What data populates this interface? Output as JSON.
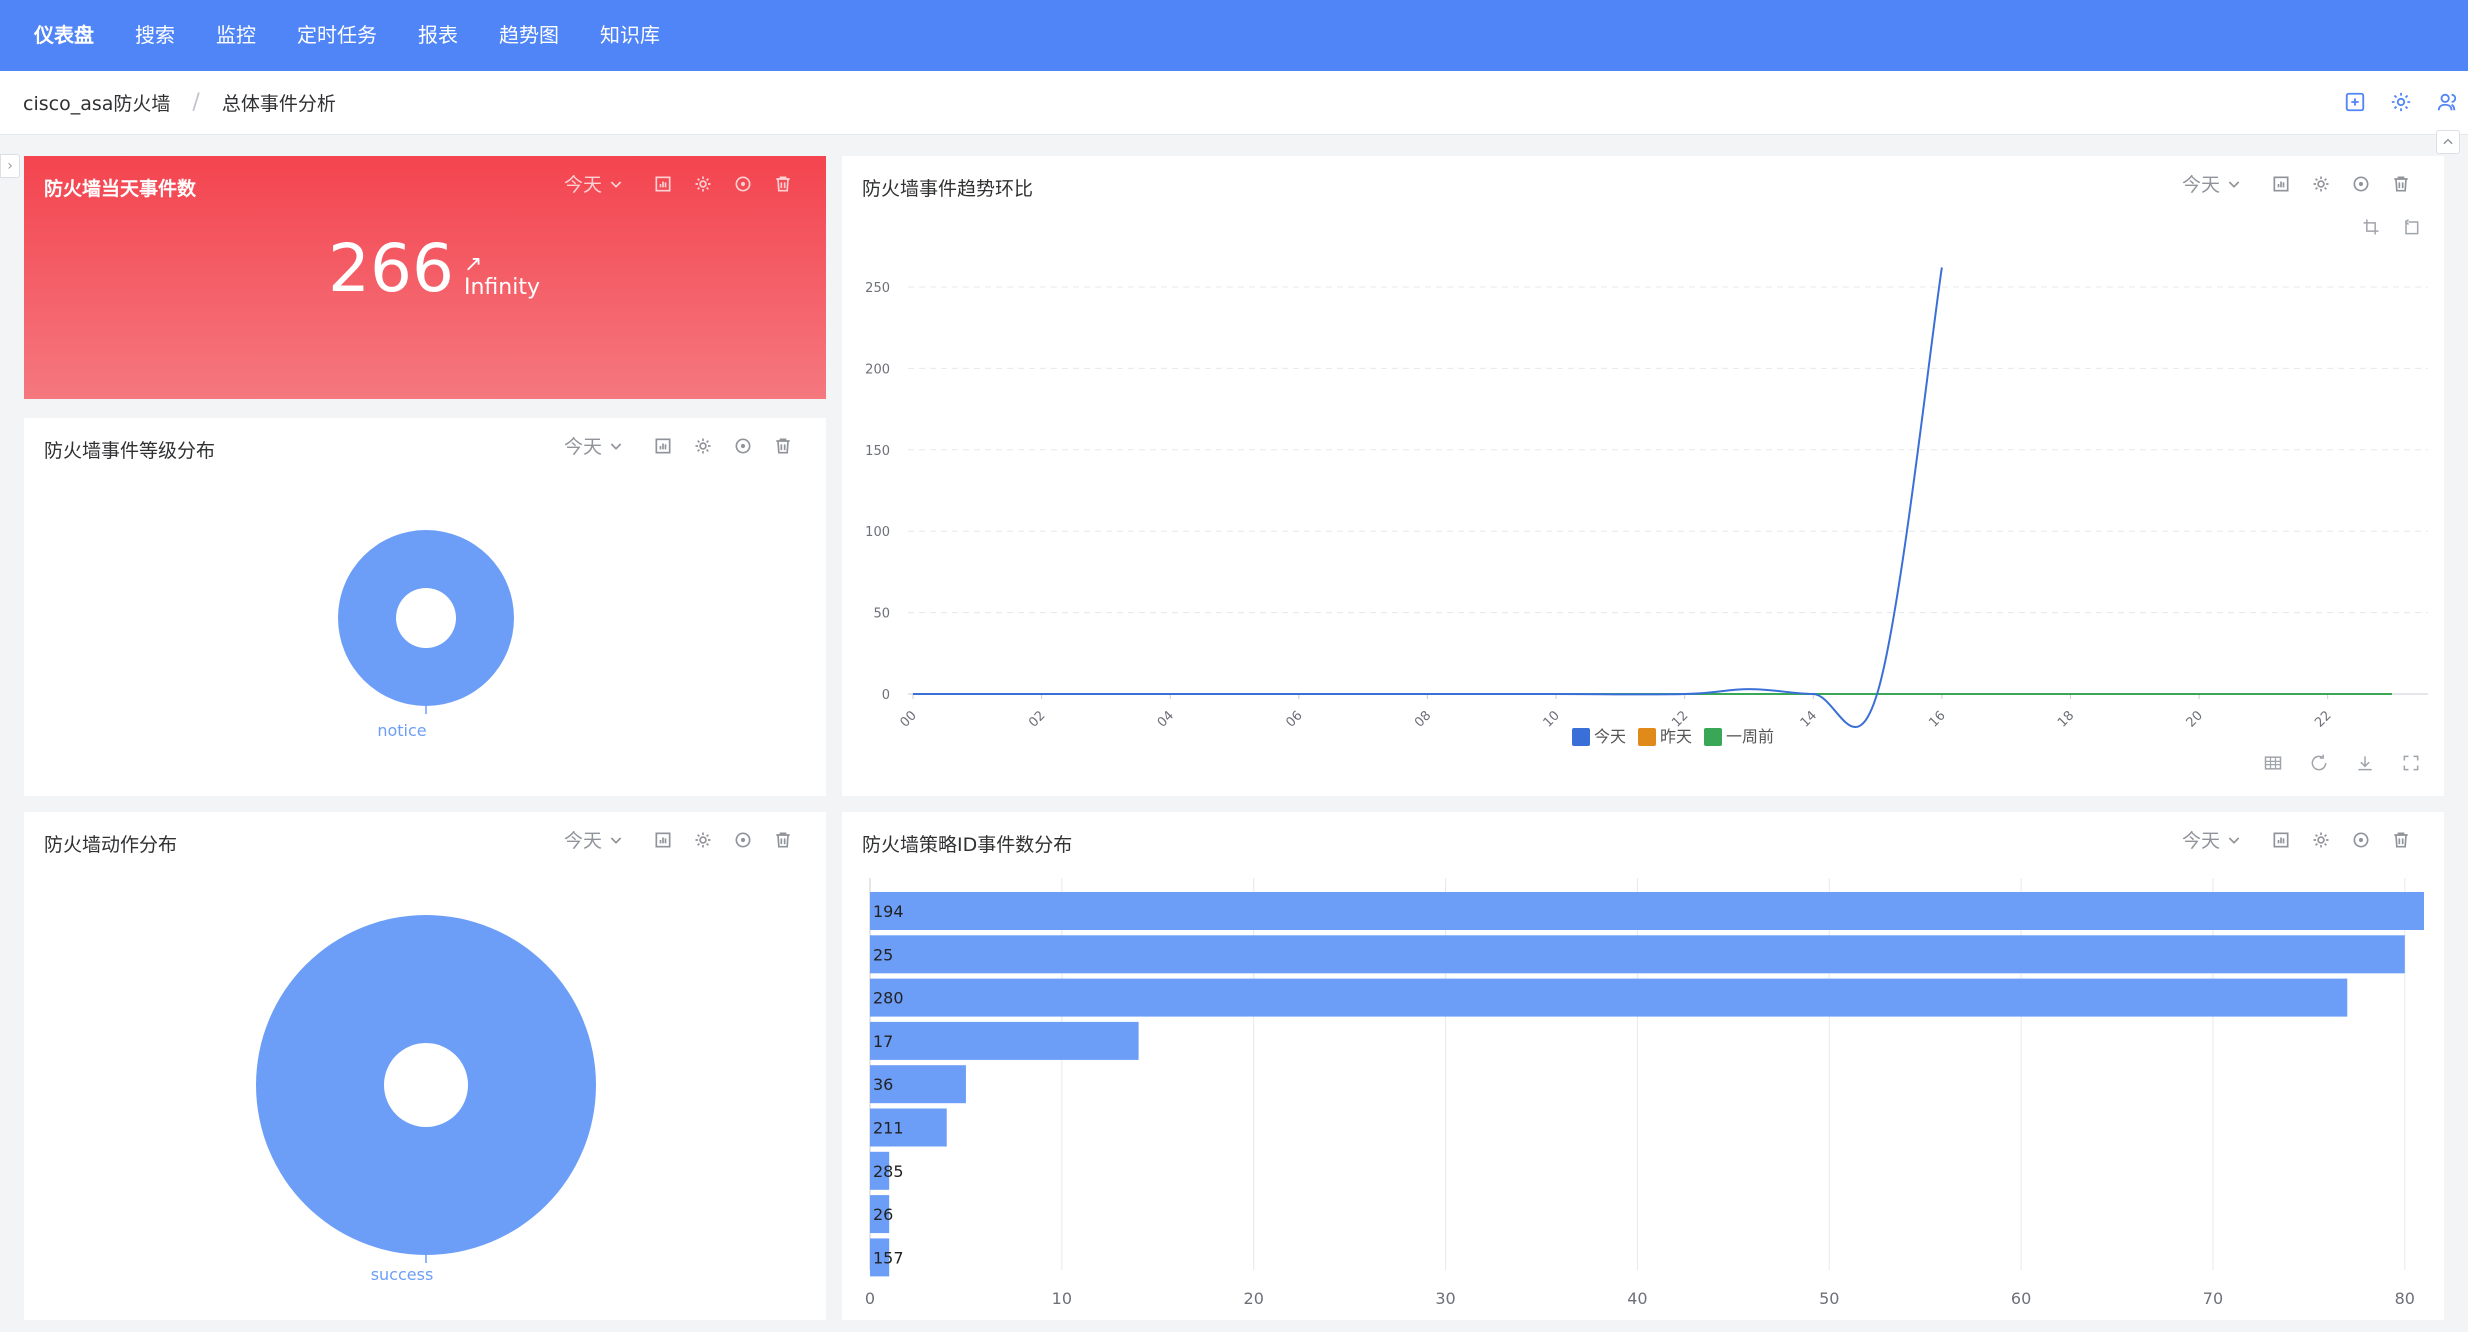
{
  "nav": {
    "items": [
      "仪表盘",
      "搜索",
      "监控",
      "定时任务",
      "报表",
      "趋势图",
      "知识库"
    ]
  },
  "breadcrumb": {
    "items": [
      "cisco_asa防火墙",
      "总体事件分析"
    ]
  },
  "colors": {
    "nav_bg": "#5085f7",
    "series_today": "#3b6fd8",
    "series_yesterday": "#e08a1a",
    "series_week": "#3aa757",
    "bar": "#6c9ef8",
    "red_card_top": "#f4444f",
    "red_card_bottom": "#f5787f"
  },
  "panels": {
    "today_count": {
      "title": "防火墙当天事件数",
      "range": "今天",
      "value": "266",
      "trend_arrow": "↗",
      "trend_pct": "Infinity"
    },
    "level_dist": {
      "title": "防火墙事件等级分布",
      "range": "今天"
    },
    "action_dist": {
      "title": "防火墙动作分布",
      "range": "今天"
    },
    "trend": {
      "title": "防火墙事件趋势环比",
      "range": "今天"
    },
    "policy_dist": {
      "title": "防火墙策略ID事件数分布",
      "range": "今天"
    }
  },
  "chart_data": [
    {
      "id": "level_dist",
      "type": "pie",
      "donut": true,
      "slices": [
        {
          "label": "notice",
          "value": 266
        }
      ]
    },
    {
      "id": "action_dist",
      "type": "pie",
      "donut": true,
      "slices": [
        {
          "label": "success",
          "value": 266
        }
      ]
    },
    {
      "id": "trend",
      "type": "line",
      "x_ticks": [
        "00",
        "02",
        "04",
        "06",
        "08",
        "10",
        "12",
        "14",
        "16",
        "18",
        "20",
        "22"
      ],
      "y_ticks": [
        "0",
        "50",
        "100",
        "150",
        "200",
        "250"
      ],
      "ylim": [
        0,
        250
      ],
      "xlim": [
        0,
        23
      ],
      "grid": true,
      "legend": "bottom-center",
      "series": [
        {
          "name": "今天",
          "x": [
            0,
            2,
            4,
            6,
            8,
            10,
            12,
            13,
            14,
            15,
            16
          ],
          "values": [
            0,
            0,
            0,
            0,
            0,
            0,
            0,
            3,
            0,
            1,
            262
          ]
        },
        {
          "name": "昨天",
          "x": [
            0,
            23
          ],
          "values": [
            0,
            0
          ]
        },
        {
          "name": "一周前",
          "x": [
            0,
            23
          ],
          "values": [
            0,
            0
          ]
        }
      ]
    },
    {
      "id": "policy_dist",
      "type": "bar",
      "orientation": "horizontal",
      "categories": [
        "194",
        "25",
        "280",
        "17",
        "36",
        "211",
        "285",
        "26",
        "157"
      ],
      "values": [
        81,
        80,
        77,
        14,
        5,
        4,
        1,
        1,
        1
      ],
      "x_ticks": [
        "0",
        "10",
        "20",
        "30",
        "40",
        "50",
        "60",
        "70",
        "80"
      ],
      "xlim": [
        0,
        81
      ],
      "grid": true
    }
  ]
}
